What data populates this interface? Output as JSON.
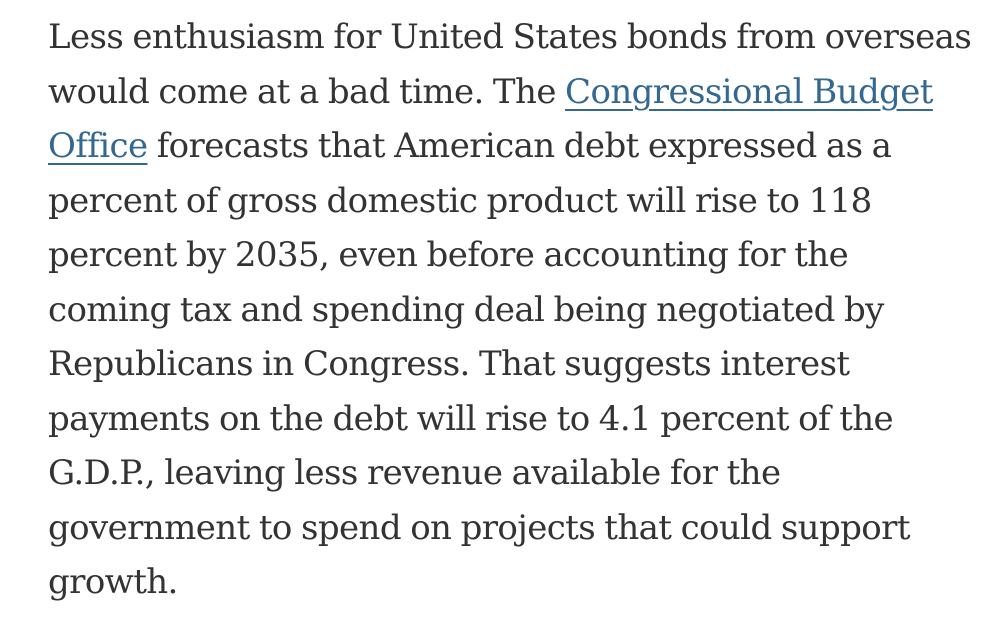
{
  "article": {
    "text_before": "Less enthusiasm for United States bonds from overseas would come at a bad time. The ",
    "link_text": "Congressional Budget Office",
    "link_color": "#326891",
    "text_after": " forecasts that American debt expressed as a percent of gross domestic product will rise to 118 percent by 2035, even before accounting for the coming tax and spending deal being negotiated by Republicans in Congress. That suggests interest payments on the debt will rise to 4.1 percent of the G.D.P., leaving less revenue available for the government to spend on projects that could support growth.",
    "text_color": "#333333"
  }
}
